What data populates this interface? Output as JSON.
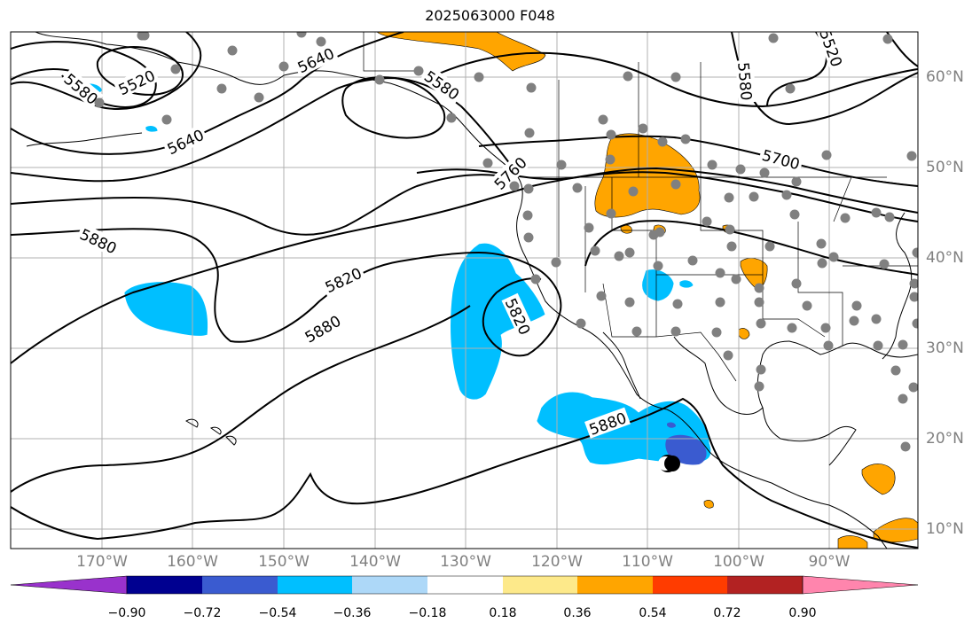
{
  "title": "2025063000 F048",
  "colors": {
    "cyan": "#00bfff",
    "light_blue": "#add8f8",
    "royal_blue": "#3a5bd0",
    "navy": "#000090",
    "purple": "#9932cc",
    "yellow": "#fde98a",
    "orange": "#ffa500",
    "red_orange": "#ff3c00",
    "dark_red": "#b22222",
    "pink": "#ff85ad",
    "ocean": "#ffffff",
    "grid": "#b0b0b0",
    "station": "#808080"
  },
  "lon_labels": [
    "170°W",
    "160°W",
    "150°W",
    "140°W",
    "130°W",
    "120°W",
    "110°W",
    "100°W",
    "90°W"
  ],
  "lat_labels": [
    "60°N",
    "50°N",
    "40°N",
    "30°N",
    "20°N",
    "10°N"
  ],
  "colorbar": {
    "ticks": [
      "−0.90",
      "−0.72",
      "−0.54",
      "−0.36",
      "−0.18",
      "0.18",
      "0.36",
      "0.54",
      "0.72",
      "0.90"
    ],
    "colors": [
      "#9932cc",
      "#000090",
      "#3a5bd0",
      "#00bfff",
      "#add8f8",
      "#ffffff",
      "#fde98a",
      "#ffa500",
      "#ff3c00",
      "#b22222",
      "#ff85ad"
    ]
  },
  "contour_labels": [
    "5520",
    "5580",
    "5640",
    "5640",
    "5580",
    "5580",
    "5520",
    "5700",
    "5760",
    "5880",
    "5820",
    "5880",
    "5820",
    "5880"
  ],
  "icons": {
    "storm": "tropical-cyclone-icon",
    "station": "station-dot-icon"
  }
}
